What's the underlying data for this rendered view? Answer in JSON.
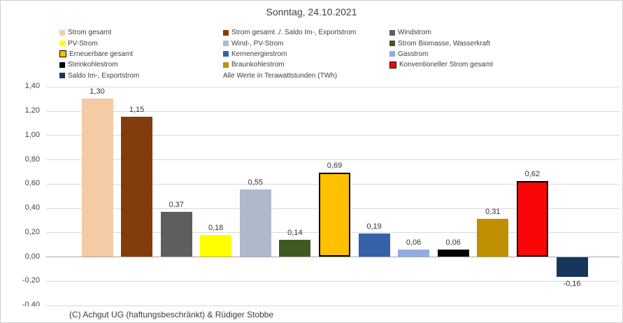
{
  "chart_data": {
    "type": "bar",
    "title": "Sonntag, 24.10.2021",
    "unit_note": "Alle Werte in Terawattstunden (TWh)",
    "categories": [
      "Strom gesamt",
      "Strom gesamt ./. Saldo Im-, Exportstrom",
      "Windstrom",
      "PV-Strom",
      "Wind-, PV-Strom",
      "Strom Biomasse, Wasserkraft",
      "Erneuerbare gesamt",
      "Kernenergiestrom",
      "Gasstrom",
      "Steinkohlestrom",
      "Braunkohlestrom",
      "Konventioneller Strom gesamt",
      "Saldo Im-, Exportstrom"
    ],
    "values": [
      1.3,
      1.15,
      0.37,
      0.18,
      0.55,
      0.14,
      0.69,
      0.19,
      0.06,
      0.06,
      0.31,
      0.62,
      -0.16
    ],
    "value_labels": [
      "1,30",
      "1,15",
      "0,37",
      "0,18",
      "0,55",
      "0,14",
      "0,69",
      "0,19",
      "0,06",
      "0,06",
      "0,31",
      "0,62",
      "-0,16"
    ],
    "colors": [
      "#F5CBA6",
      "#833C0B",
      "#5E5E5E",
      "#FFFF00",
      "#AEBACB",
      "#3F5A21",
      "#FFC000",
      "#3561A7",
      "#92ACDF",
      "#000000",
      "#BE8F00",
      "#FB0607",
      "#16365C"
    ],
    "bar_borders": [
      null,
      null,
      null,
      null,
      null,
      null,
      "#000000",
      null,
      null,
      null,
      null,
      "#000000",
      null
    ],
    "ylim": [
      -0.4,
      1.4
    ],
    "ytick_step": 0.2,
    "ytick_labels": [
      "1,40",
      "1,20",
      "1,00",
      "0,80",
      "0,60",
      "0,40",
      "0,20",
      "0,00",
      "-0,20",
      "-0,40"
    ],
    "grid": true,
    "legend_position": "top",
    "decimal_separator": ","
  },
  "footer": {
    "copyright": "(C) Achgut UG (haftungsbeschränkt) & Rüdiger Stobbe"
  }
}
